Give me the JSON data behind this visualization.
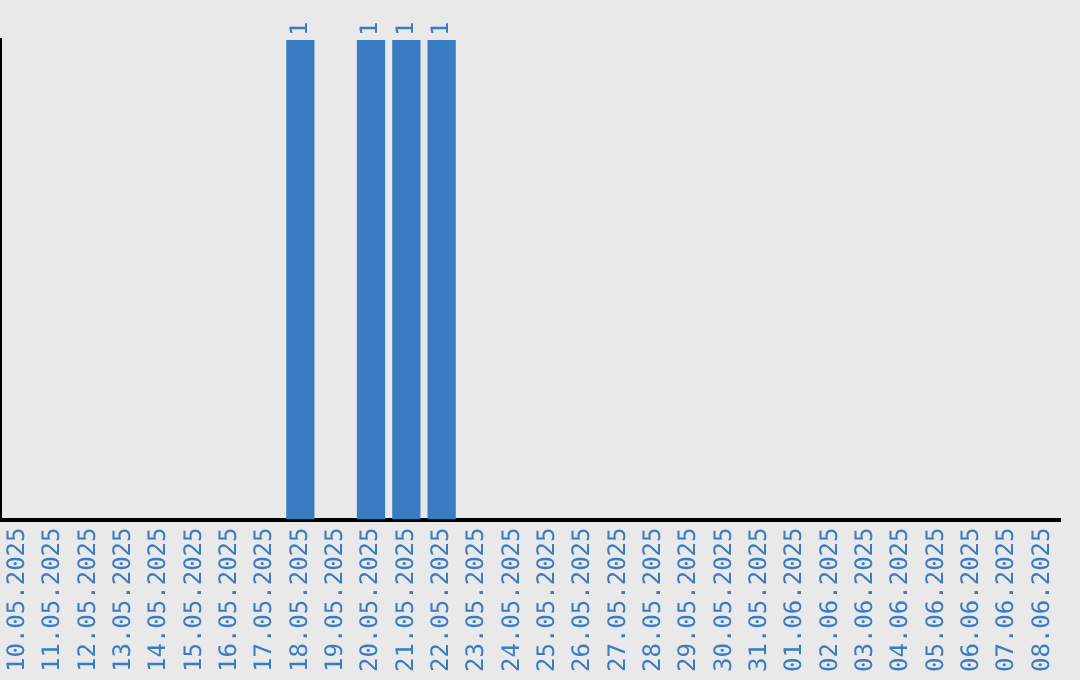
{
  "chart_data": {
    "type": "bar",
    "categories": [
      "10.05.2025",
      "11.05.2025",
      "12.05.2025",
      "13.05.2025",
      "14.05.2025",
      "15.05.2025",
      "16.05.2025",
      "17.05.2025",
      "18.05.2025",
      "19.05.2025",
      "20.05.2025",
      "21.05.2025",
      "22.05.2025",
      "23.05.2025",
      "24.05.2025",
      "25.05.2025",
      "26.05.2025",
      "27.05.2025",
      "28.05.2025",
      "29.05.2025",
      "30.05.2025",
      "31.05.2025",
      "01.06.2025",
      "02.06.2025",
      "03.06.2025",
      "04.06.2025",
      "05.06.2025",
      "06.06.2025",
      "07.06.2025",
      "08.06.2025"
    ],
    "values": [
      0,
      0,
      0,
      0,
      0,
      0,
      0,
      0,
      1,
      0,
      1,
      1,
      1,
      0,
      0,
      0,
      0,
      0,
      0,
      0,
      0,
      0,
      0,
      0,
      0,
      0,
      0,
      0,
      0,
      0
    ],
    "value_labels": [
      null,
      null,
      null,
      null,
      null,
      null,
      null,
      null,
      "1",
      null,
      "1",
      "1",
      "1",
      null,
      null,
      null,
      null,
      null,
      null,
      null,
      null,
      null,
      null,
      null,
      null,
      null,
      null,
      null,
      null,
      null
    ],
    "color": "#3a7cc1",
    "grid": false,
    "legend": false
  }
}
